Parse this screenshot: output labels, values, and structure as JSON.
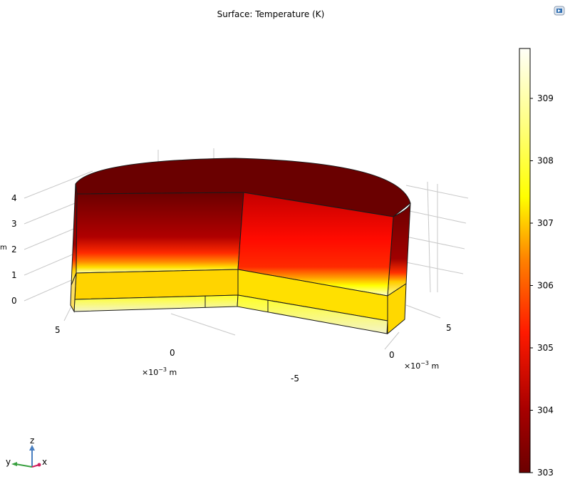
{
  "chart_data": {
    "type": "heatmap",
    "title": "Surface: Temperature (K)",
    "colorbar": {
      "ticks": [
        303,
        304,
        305,
        306,
        307,
        308,
        309
      ],
      "tick_labels": [
        "303",
        "304",
        "305",
        "306",
        "307",
        "308",
        "309"
      ],
      "range": [
        303,
        309.8
      ]
    },
    "axes": {
      "z_ticks": [
        "0",
        "1",
        "2",
        "3",
        "4"
      ],
      "z_unit_fragment": "m",
      "y_ticks": [
        "5",
        "0",
        "-5"
      ],
      "y_unit_prefix": "×10",
      "y_unit_exp": "−3",
      "y_unit_suffix": " m",
      "x_ticks": [
        "0",
        "5"
      ],
      "x_unit_prefix": "×10",
      "x_unit_exp": "−3",
      "x_unit_suffix": " m"
    },
    "triad": {
      "x": "x",
      "y": "y",
      "z": "z"
    }
  },
  "colors": {
    "cold": "#6b0000",
    "mid": "#ff1a00",
    "hot": "#ffff00",
    "hottest": "#fffff8",
    "edge": "#1a1a1a"
  }
}
